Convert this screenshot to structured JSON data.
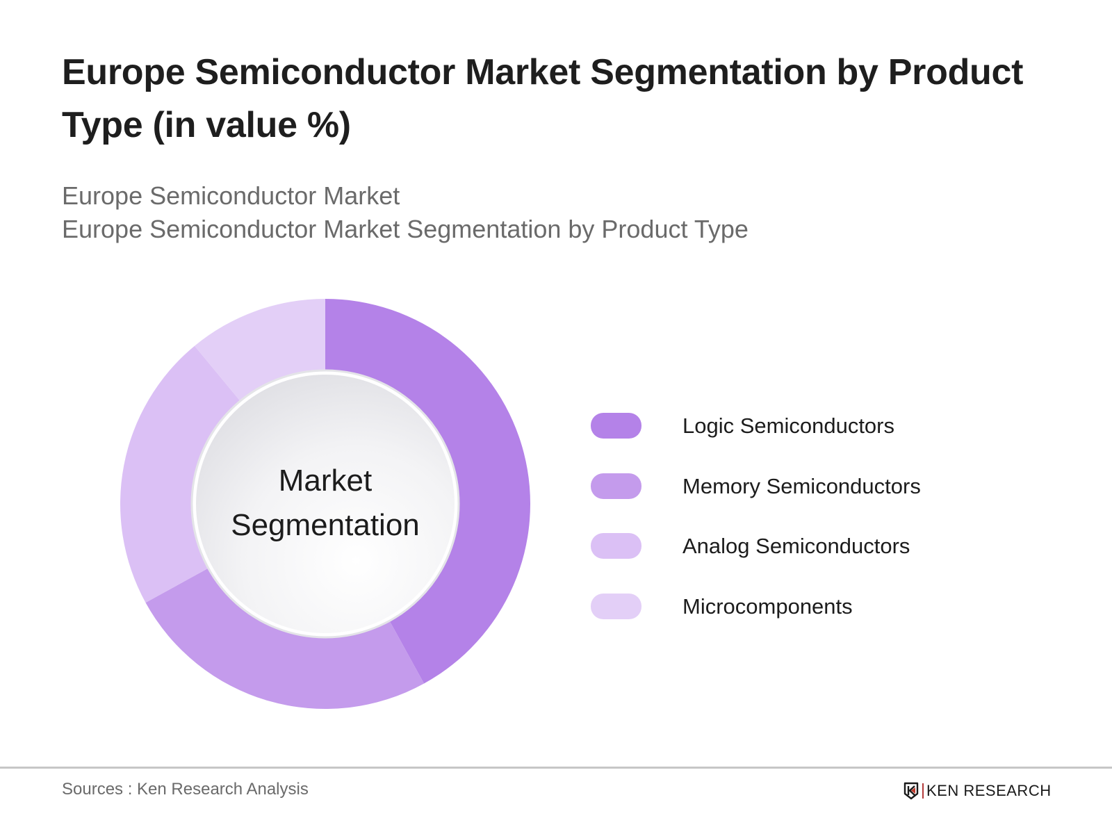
{
  "header": {
    "title": "Europe Semiconductor Market Segmentation by Product Type (in value %)",
    "subtitle_lines": [
      "Europe Semiconductor Market",
      "Europe Semiconductor Market Segmentation by Product Type"
    ]
  },
  "chart_center_label": [
    "Market",
    "Segmentation"
  ],
  "legend": {
    "items": [
      {
        "label": "Logic Semiconductors",
        "color": "#b482e8"
      },
      {
        "label": "Memory Semiconductors",
        "color": "#c49bec"
      },
      {
        "label": "Analog Semiconductors",
        "color": "#dbc0f5"
      },
      {
        "label": "Microcomponents",
        "color": "#e3cff7"
      }
    ]
  },
  "footer": {
    "sources": "Sources : Ken Research Analysis",
    "logo_text": "KEN RESEARCH",
    "logo_accent": "#c0392b"
  },
  "chart_data": {
    "type": "pie",
    "variant": "donut",
    "title": "Europe Semiconductor Market Segmentation by Product Type (in value %)",
    "subtitle": "Europe Semiconductor Market / Europe Semiconductor Market Segmentation by Product Type",
    "center_text": "Market Segmentation",
    "categories": [
      "Logic Semiconductors",
      "Memory Semiconductors",
      "Analog Semiconductors",
      "Microcomponents"
    ],
    "values": [
      42,
      25,
      22,
      11
    ],
    "colors": [
      "#b482e8",
      "#c49bec",
      "#dbc0f5",
      "#e3cff7"
    ],
    "unit": "%",
    "start_angle_deg": 0,
    "direction": "clockwise",
    "legend_position": "right",
    "data_labels": false
  }
}
